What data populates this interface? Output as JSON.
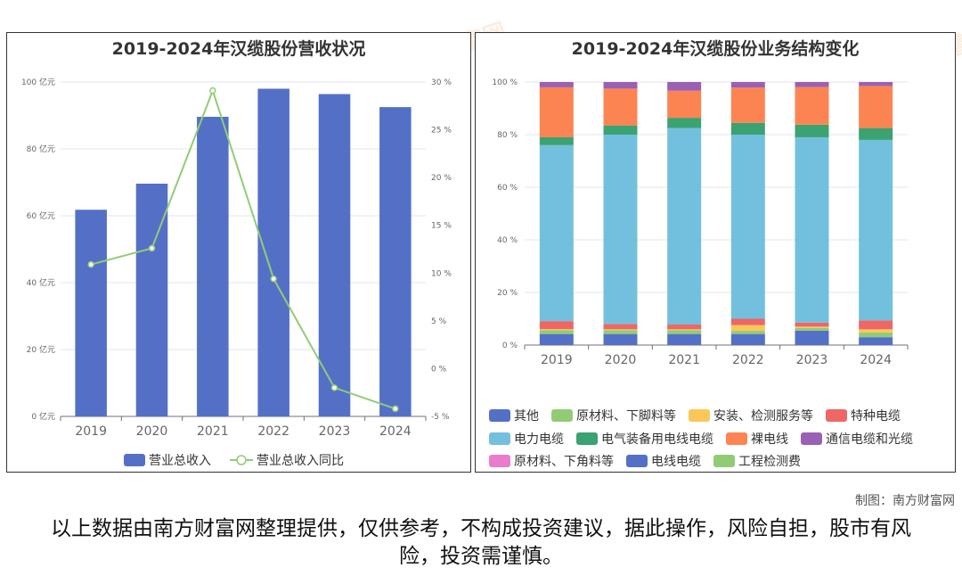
{
  "colors": {
    "bar": "#5470c6",
    "line": "#91cc75",
    "grid": "#e0e6f1",
    "axis": "#6e7079"
  },
  "watermark": "南方财富网",
  "left": {
    "title": "2019-2024年汉缆股份营收状况",
    "y_left_ticks": [
      "0 亿元",
      "20 亿元",
      "40 亿元",
      "60 亿元",
      "80 亿元",
      "100 亿元"
    ],
    "y_right_ticks": [
      "-5 %",
      "0 %",
      "5 %",
      "10 %",
      "15 %",
      "20 %",
      "25 %",
      "30 %"
    ],
    "legend": [
      "营业总收入",
      "营业总收入同比"
    ]
  },
  "right": {
    "title": "2019-2024年汉缆股份业务结构变化",
    "y_ticks": [
      "0 %",
      "20 %",
      "40 %",
      "60 %",
      "80 %",
      "100 %"
    ]
  },
  "credit": "制图：南方财富网",
  "disclaimer": "以上数据由南方财富网整理提供，仅供参考，不构成投资建议，据此操作，风险自担，股市有风险，投资需谨慎。",
  "chart_data": [
    {
      "type": "bar",
      "title": "2019-2024年汉缆股份营收状况",
      "categories": [
        "2019",
        "2020",
        "2021",
        "2022",
        "2023",
        "2024"
      ],
      "ylim": [
        0,
        100
      ],
      "y2lim": [
        -5,
        30
      ],
      "series": [
        {
          "name": "营业总收入",
          "type": "bar",
          "axis": "left",
          "values": [
            61.8,
            69.6,
            89.6,
            98.0,
            96.4,
            92.5
          ]
        },
        {
          "name": "营业总收入同比",
          "type": "line",
          "axis": "right",
          "values": [
            10.9,
            12.6,
            29.1,
            9.4,
            -2.0,
            -4.2
          ]
        }
      ],
      "legend_position": "bottom",
      "grid": true
    },
    {
      "type": "bar",
      "stacked": true,
      "title": "2019-2024年汉缆股份业务结构变化",
      "categories": [
        "2019",
        "2020",
        "2021",
        "2022",
        "2023",
        "2024"
      ],
      "ylim": [
        0,
        100
      ],
      "legend_position": "bottom",
      "grid": true,
      "series": [
        {
          "name": "其他",
          "color": "#5470c6",
          "values": [
            4.2,
            4.2,
            4.2,
            4.2,
            5.5,
            3.0
          ]
        },
        {
          "name": "原材料、下脚料等",
          "color": "#91cc75",
          "values": [
            1.5,
            1.5,
            1.5,
            1.2,
            1.0,
            1.8
          ]
        },
        {
          "name": "安装、检测服务等",
          "color": "#fac858",
          "values": [
            0.4,
            0.3,
            0.3,
            2.2,
            0.5,
            1.2
          ]
        },
        {
          "name": "特种电缆",
          "color": "#ee6666",
          "values": [
            3.0,
            2.0,
            1.8,
            2.4,
            1.5,
            3.4
          ]
        },
        {
          "name": "电力电缆",
          "color": "#73c0de",
          "values": [
            66.9,
            72.0,
            74.7,
            70.0,
            70.5,
            68.6
          ]
        },
        {
          "name": "电气装备用电线电缆",
          "color": "#3ba272",
          "values": [
            3.0,
            3.5,
            3.9,
            4.5,
            4.8,
            4.5
          ]
        },
        {
          "name": "裸电线",
          "color": "#fc8452",
          "values": [
            19.0,
            14.0,
            10.3,
            13.4,
            14.3,
            16.0
          ]
        },
        {
          "name": "通信电缆和光缆",
          "color": "#9a60b4",
          "values": [
            2.0,
            2.5,
            3.3,
            2.1,
            1.9,
            1.5
          ]
        },
        {
          "name": "原材料、下角料等",
          "color": "#ea7ccc",
          "values": [
            0,
            0,
            0,
            0,
            0,
            0
          ]
        },
        {
          "name": "电线电缆",
          "color": "#5470c6",
          "values": [
            0,
            0,
            0,
            0,
            0,
            0
          ]
        },
        {
          "name": "工程检测费",
          "color": "#91cc75",
          "values": [
            0,
            0,
            0,
            0,
            0,
            0
          ]
        }
      ]
    }
  ]
}
